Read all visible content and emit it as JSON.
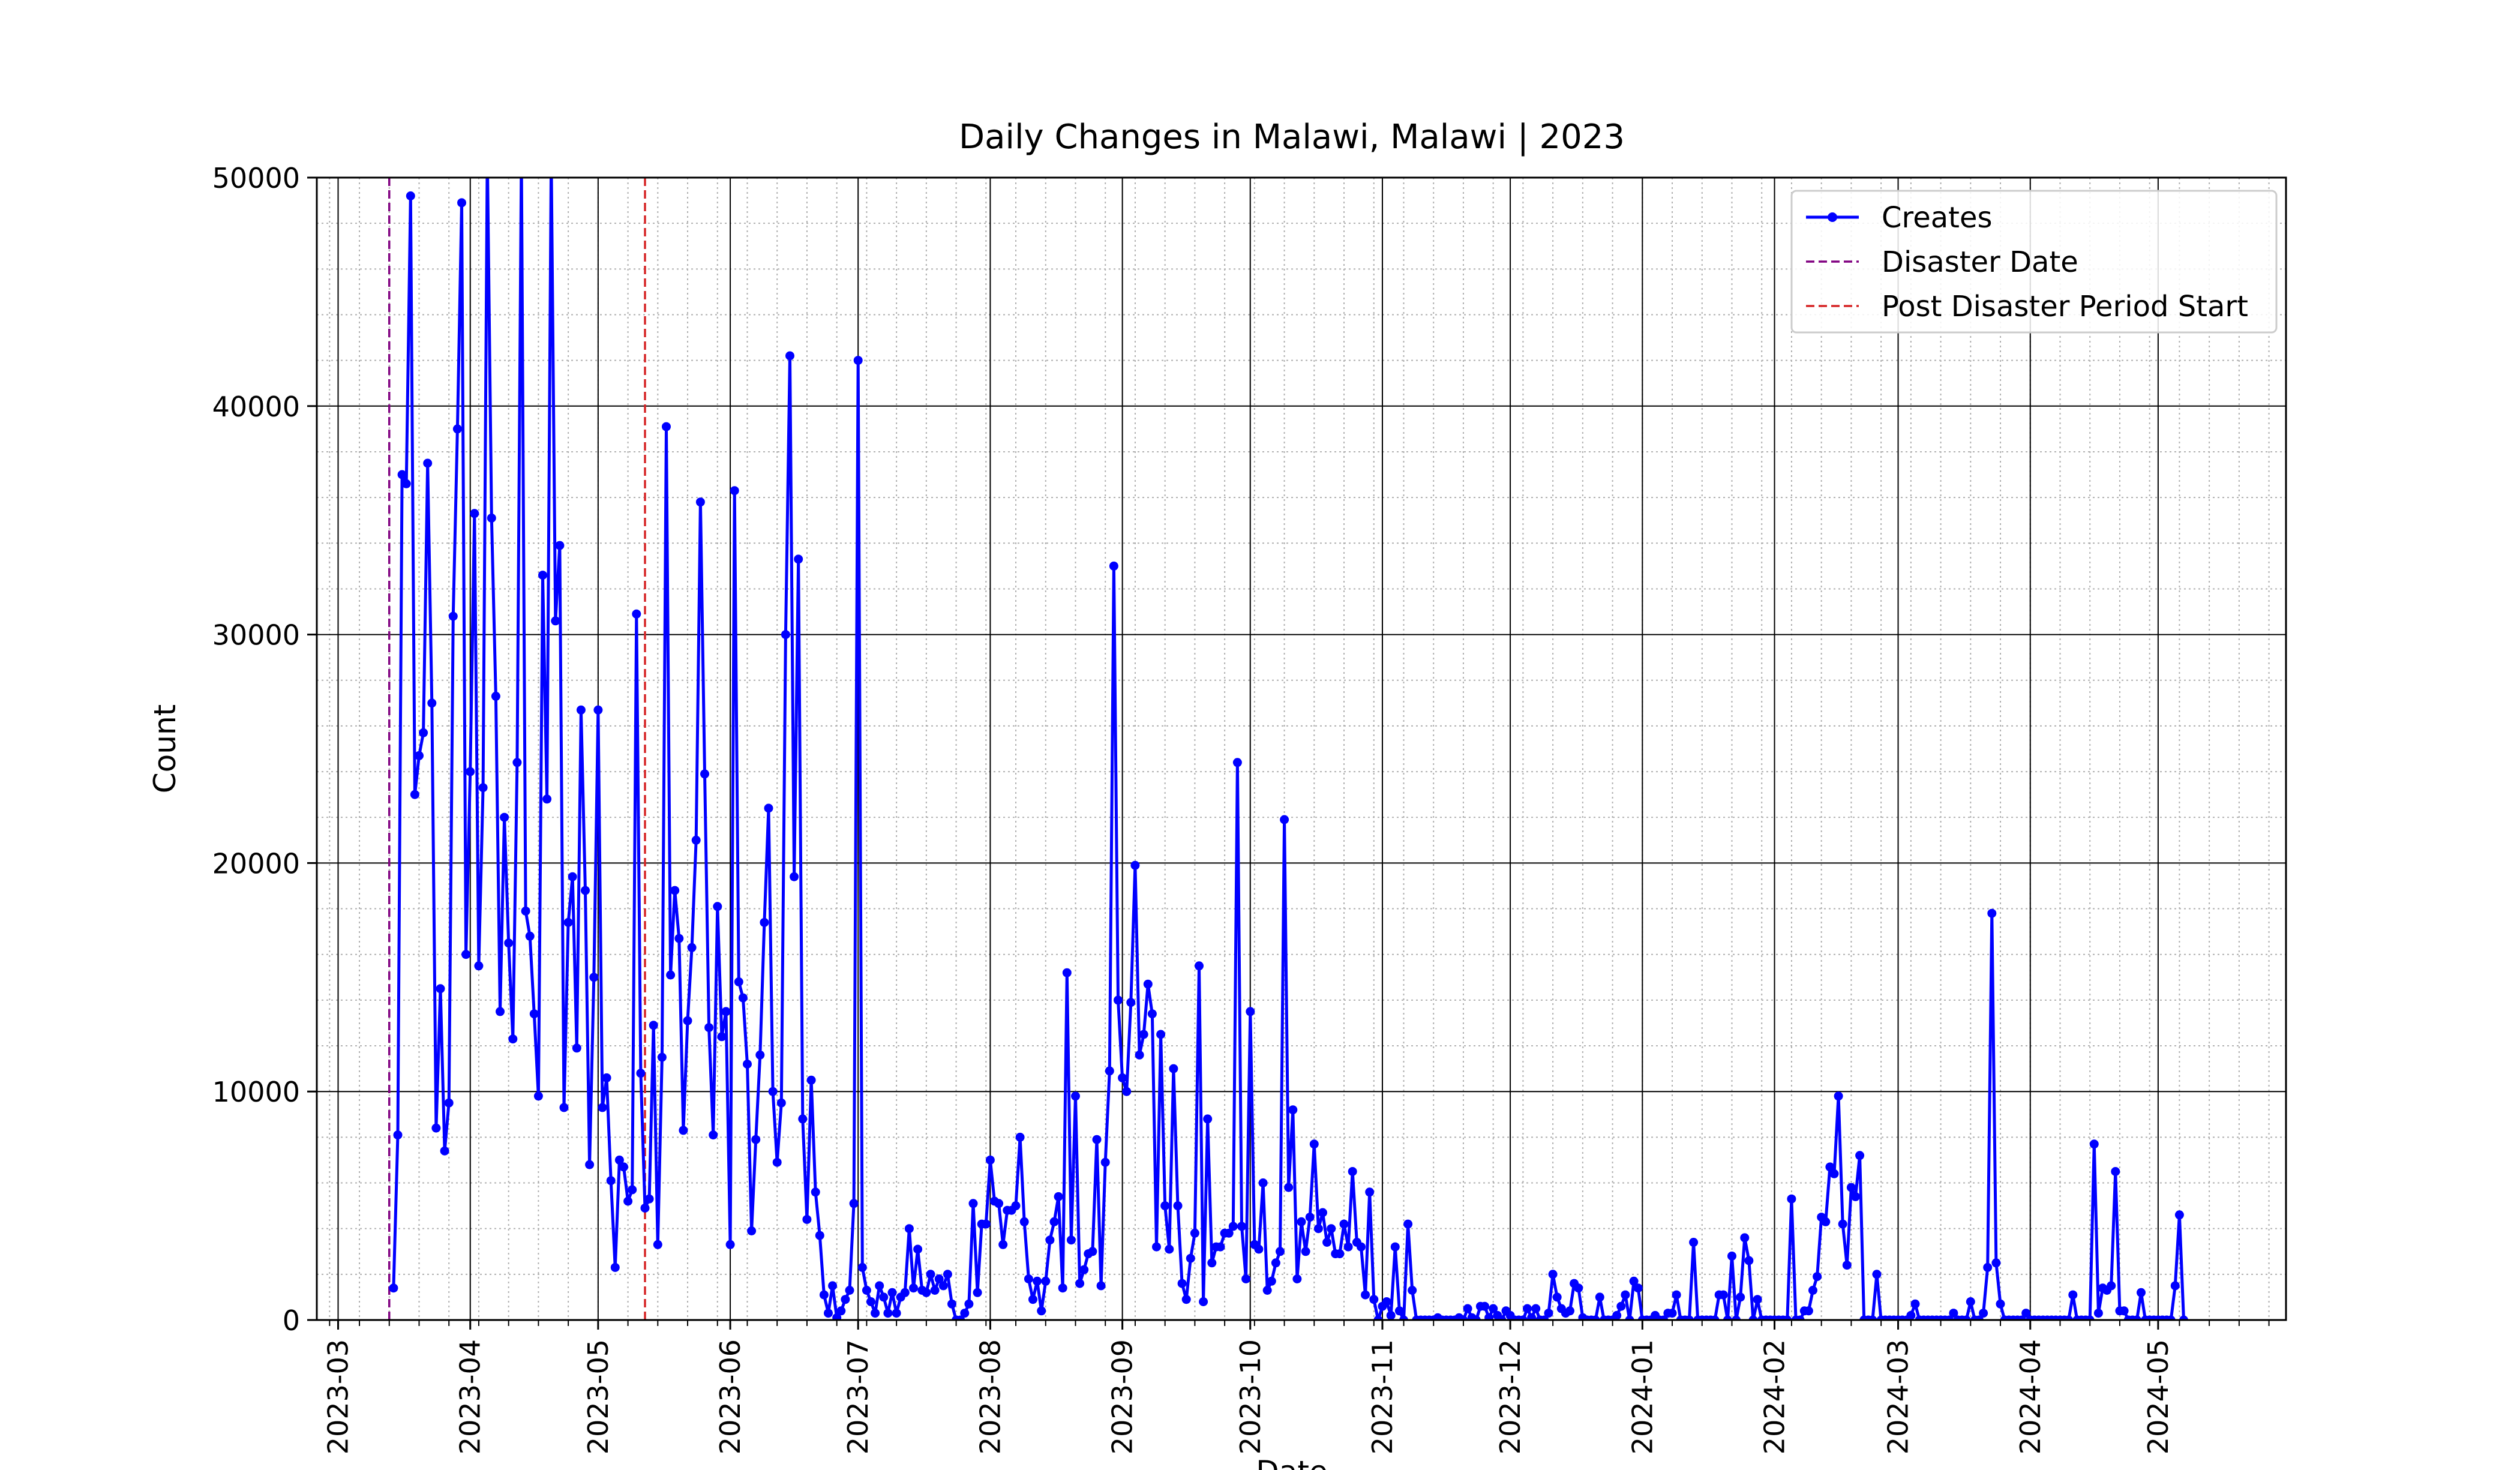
{
  "chart_data": {
    "type": "line",
    "title": "Daily Changes in Malawi, Malawi | 2023",
    "xlabel": "Date",
    "ylabel": "Count",
    "ylim": [
      0,
      50000
    ],
    "xlim": [
      "2023-02-24",
      "2024-05-31"
    ],
    "grid": "major and minor",
    "legend_placement": "top-right",
    "y_ticks": [
      0,
      10000,
      20000,
      30000,
      40000,
      50000
    ],
    "x_ticks": [
      "2023-03",
      "2023-04",
      "2023-05",
      "2023-06",
      "2023-07",
      "2023-08",
      "2023-09",
      "2023-10",
      "2023-11",
      "2023-12",
      "2024-01",
      "2024-02",
      "2024-03",
      "2024-04",
      "2024-05"
    ],
    "series": [
      {
        "name": "Creates",
        "color": "#0000ff",
        "marker": "circle",
        "x_start": "2023-03-14",
        "step_days": 1,
        "values": [
          1400,
          8100,
          37000,
          36600,
          49200,
          23000,
          24700,
          25700,
          37500,
          27000,
          8400,
          14500,
          7400,
          9500,
          30800,
          39000,
          48900,
          16000,
          24000,
          35300,
          15500,
          23300,
          51000,
          35100,
          27300,
          13500,
          22000,
          16500,
          12300,
          24400,
          51000,
          17900,
          16800,
          13400,
          9800,
          32600,
          22800,
          51000,
          30600,
          33900,
          9300,
          17400,
          19400,
          11900,
          26700,
          18800,
          6800,
          15000,
          26700,
          9300,
          10600,
          6100,
          2300,
          7000,
          6700,
          5200,
          5700,
          30900,
          10800,
          4900,
          5300,
          12900,
          3300,
          11500,
          39100,
          15100,
          18800,
          16700,
          8300,
          13100,
          16300,
          21000,
          35800,
          23900,
          12800,
          8100,
          18100,
          12400,
          13500,
          3300,
          36300,
          14800,
          14100,
          11200,
          3900,
          7900,
          11600,
          17400,
          22400,
          10000,
          6900,
          9500,
          30000,
          42200,
          19400,
          33300,
          8800,
          4400,
          10500,
          5600,
          3700,
          1100,
          300,
          1500,
          100,
          400,
          900,
          1300,
          5100,
          42000,
          2300,
          1300,
          800,
          300,
          1500,
          1000,
          300,
          1200,
          300,
          1000,
          1200,
          4000,
          1400,
          3100,
          1300,
          1200,
          2000,
          1300,
          1800,
          1500,
          2000,
          700,
          0,
          0,
          300,
          700,
          5100,
          1200,
          4200,
          4200,
          7000,
          5200,
          5100,
          3300,
          4800,
          4800,
          5000,
          8000,
          4300,
          1800,
          900,
          1700,
          400,
          1700,
          3500,
          4300,
          5400,
          1400,
          15200,
          3500,
          9800,
          1600,
          2200,
          2900,
          3000,
          7900,
          1500,
          6900,
          10900,
          33000,
          14000,
          10600,
          10000,
          13900,
          19900,
          11600,
          12500,
          14700,
          13400,
          3200,
          12500,
          5000,
          3100,
          11000,
          5000,
          1600,
          900,
          2700,
          3800,
          15500,
          800,
          8800,
          2500,
          3200,
          3200,
          3800,
          3800,
          4100,
          24400,
          4100,
          1800,
          13500,
          3300,
          3100,
          6000,
          1300,
          1700,
          2500,
          3000,
          21900,
          5800,
          9200,
          1800,
          4300,
          3000,
          4500,
          7700,
          4000,
          4700,
          3400,
          4000,
          2900,
          2900,
          4200,
          3200,
          6500,
          3400,
          3200,
          1100,
          5600,
          900,
          0,
          600,
          800,
          200,
          3200,
          400,
          0,
          4200,
          1300,
          0,
          0,
          0,
          0,
          0,
          100,
          0,
          0,
          0,
          0,
          100,
          0,
          500,
          100,
          0,
          600,
          600,
          100,
          500,
          200,
          0,
          400,
          200,
          0,
          0,
          0,
          500,
          100,
          500,
          0,
          0,
          300,
          2000,
          1000,
          500,
          300,
          400,
          1600,
          1400,
          100,
          0,
          0,
          0,
          1000,
          0,
          0,
          0,
          200,
          600,
          1100,
          0,
          1700,
          1400,
          0,
          0,
          0,
          200,
          0,
          0,
          300,
          300,
          1100,
          0,
          0,
          0,
          3400,
          0,
          0,
          0,
          0,
          0,
          1100,
          1100,
          0,
          2800,
          0,
          1000,
          3600,
          2600,
          0,
          900,
          0,
          0,
          0,
          0,
          0,
          0,
          0,
          5300,
          0,
          0,
          400,
          400,
          1300,
          1900,
          4500,
          4300,
          6700,
          6400,
          9800,
          4200,
          2400,
          5800,
          5400,
          7200,
          0,
          0,
          0,
          2000,
          0,
          0,
          0,
          0,
          0,
          0,
          0,
          200,
          700,
          0,
          0,
          0,
          0,
          0,
          0,
          0,
          0,
          300,
          0,
          0,
          0,
          800,
          0,
          0,
          300,
          2300,
          17800,
          2500,
          700,
          0,
          0,
          0,
          0,
          0,
          300,
          0,
          0,
          0,
          0,
          0,
          0,
          0,
          0,
          0,
          0,
          1100,
          0,
          0,
          0,
          0,
          7700,
          300,
          1400,
          1300,
          1500,
          6500,
          400,
          400,
          0,
          0,
          0,
          1200,
          0,
          0,
          0,
          0,
          0,
          0,
          0,
          1500,
          4600,
          0
        ]
      }
    ],
    "vlines": [
      {
        "name": "Disaster Date",
        "x": "2023-03-13",
        "color": "#800080",
        "style": "dashed"
      },
      {
        "name": "Post Disaster Period Start",
        "x": "2023-05-12",
        "color": "#d62728",
        "style": "dashed"
      }
    ]
  }
}
